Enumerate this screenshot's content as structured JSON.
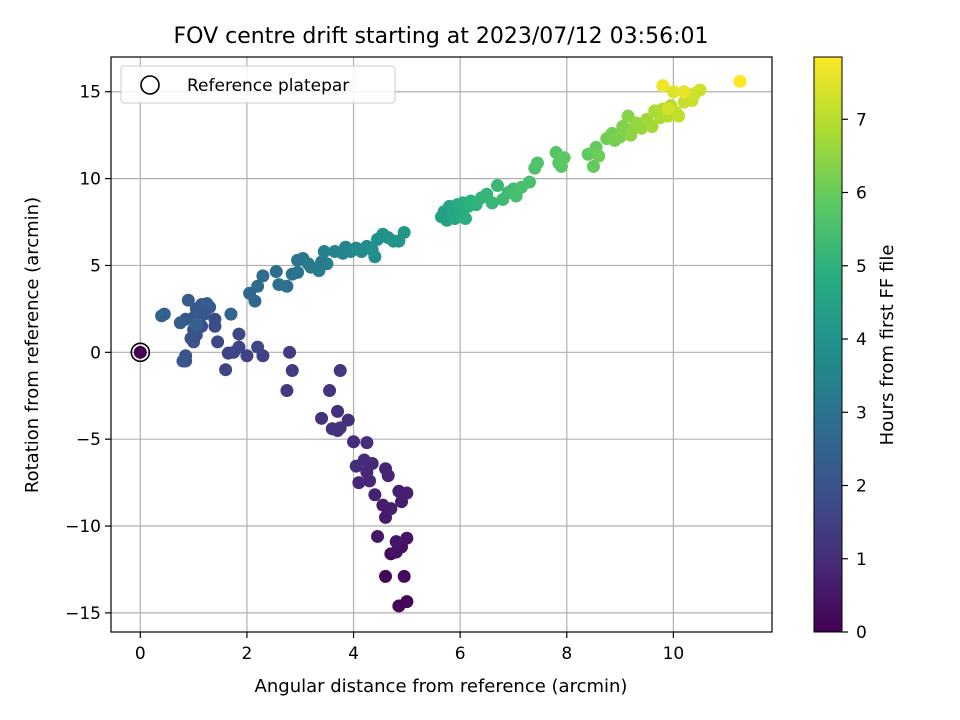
{
  "chart_data": {
    "type": "scatter",
    "title": "FOV centre drift starting at 2023/07/12 03:56:01",
    "xlabel": "Angular distance from reference (arcmin)",
    "ylabel": "Rotation from reference (arcmin)",
    "xlim": [
      -0.55,
      11.85
    ],
    "ylim": [
      -16.1,
      17.0
    ],
    "xticks": [
      0,
      2,
      4,
      6,
      8,
      10
    ],
    "yticks": [
      -15,
      -10,
      -5,
      0,
      5,
      10,
      15
    ],
    "grid": true,
    "legend": {
      "placement": "upper-left",
      "entries": [
        "Reference platepar"
      ]
    },
    "reference_point": {
      "x": 0,
      "y": 0
    },
    "colorbar": {
      "label": "Hours from first FF file",
      "range": [
        0,
        7.85
      ],
      "ticks": [
        0,
        1,
        2,
        3,
        4,
        5,
        6,
        7
      ],
      "colormap": "viridis"
    },
    "series": [
      {
        "points": [
          {
            "x": 4.85,
            "y": -14.6,
            "t": 0.05
          },
          {
            "x": 5.0,
            "y": -14.35,
            "t": 0.1
          },
          {
            "x": 4.6,
            "y": -12.9,
            "t": 0.15
          },
          {
            "x": 4.95,
            "y": -12.9,
            "t": 0.2
          },
          {
            "x": 4.7,
            "y": -11.6,
            "t": 0.25
          },
          {
            "x": 4.9,
            "y": -11.2,
            "t": 0.3
          },
          {
            "x": 4.8,
            "y": -11.5,
            "t": 0.35
          },
          {
            "x": 5.0,
            "y": -10.7,
            "t": 0.4
          },
          {
            "x": 4.8,
            "y": -10.9,
            "t": 0.45
          },
          {
            "x": 4.45,
            "y": -10.6,
            "t": 0.5
          },
          {
            "x": 4.6,
            "y": -9.5,
            "t": 0.55
          },
          {
            "x": 4.7,
            "y": -9.0,
            "t": 0.6
          },
          {
            "x": 4.55,
            "y": -8.8,
            "t": 0.6
          },
          {
            "x": 4.9,
            "y": -8.6,
            "t": 0.65
          },
          {
            "x": 4.85,
            "y": -8.0,
            "t": 0.7
          },
          {
            "x": 5.0,
            "y": -8.1,
            "t": 0.7
          },
          {
            "x": 4.4,
            "y": -8.2,
            "t": 0.75
          },
          {
            "x": 4.65,
            "y": -7.1,
            "t": 0.8
          },
          {
            "x": 4.6,
            "y": -6.7,
            "t": 0.8
          },
          {
            "x": 4.3,
            "y": -7.4,
            "t": 0.85
          },
          {
            "x": 4.1,
            "y": -7.5,
            "t": 0.85
          },
          {
            "x": 4.25,
            "y": -6.9,
            "t": 0.9
          },
          {
            "x": 4.35,
            "y": -6.4,
            "t": 0.9
          },
          {
            "x": 4.05,
            "y": -6.55,
            "t": 0.95
          },
          {
            "x": 4.2,
            "y": -6.2,
            "t": 0.95
          },
          {
            "x": 4.25,
            "y": -5.2,
            "t": 1.0
          },
          {
            "x": 4.0,
            "y": -5.15,
            "t": 1.0
          },
          {
            "x": 3.9,
            "y": -3.9,
            "t": 1.05
          },
          {
            "x": 3.7,
            "y": -3.4,
            "t": 1.05
          },
          {
            "x": 3.4,
            "y": -3.8,
            "t": 1.1
          },
          {
            "x": 3.6,
            "y": -4.4,
            "t": 1.1
          },
          {
            "x": 3.75,
            "y": -4.35,
            "t": 1.15
          },
          {
            "x": 3.7,
            "y": -4.5,
            "t": 1.15
          },
          {
            "x": 3.55,
            "y": -2.2,
            "t": 1.2
          },
          {
            "x": 3.75,
            "y": -1.05,
            "t": 1.25
          },
          {
            "x": 2.75,
            "y": -2.2,
            "t": 1.3
          },
          {
            "x": 2.85,
            "y": -1.05,
            "t": 1.35
          },
          {
            "x": 2.8,
            "y": 0.0,
            "t": 1.4
          },
          {
            "x": 2.3,
            "y": -0.2,
            "t": 1.5
          },
          {
            "x": 2.0,
            "y": -0.2,
            "t": 1.55
          },
          {
            "x": 1.65,
            "y": -0.05,
            "t": 1.6
          },
          {
            "x": 1.6,
            "y": -1.0,
            "t": 1.6
          },
          {
            "x": 1.75,
            "y": 0.0,
            "t": 1.65
          },
          {
            "x": 1.85,
            "y": 0.3,
            "t": 1.65
          },
          {
            "x": 2.2,
            "y": 0.3,
            "t": 1.7
          },
          {
            "x": 1.85,
            "y": 1.05,
            "t": 1.7
          },
          {
            "x": 1.45,
            "y": 0.6,
            "t": 1.75
          },
          {
            "x": 1.4,
            "y": 1.5,
            "t": 1.8
          },
          {
            "x": 1.4,
            "y": 1.9,
            "t": 1.8
          },
          {
            "x": 1.15,
            "y": 1.5,
            "t": 1.85
          },
          {
            "x": 1.0,
            "y": 1.3,
            "t": 1.9
          },
          {
            "x": 0.95,
            "y": 0.8,
            "t": 1.9
          },
          {
            "x": 1.0,
            "y": 0.6,
            "t": 1.95
          },
          {
            "x": 1.05,
            "y": 1.0,
            "t": 1.95
          },
          {
            "x": 0.85,
            "y": -0.2,
            "t": 2.0
          },
          {
            "x": 0.85,
            "y": -0.5,
            "t": 2.0
          },
          {
            "x": 0.8,
            "y": -0.5,
            "t": 2.05
          },
          {
            "x": 0.85,
            "y": 1.9,
            "t": 2.1
          },
          {
            "x": 1.0,
            "y": 2.0,
            "t": 2.1
          },
          {
            "x": 1.2,
            "y": 2.2,
            "t": 2.15
          },
          {
            "x": 1.3,
            "y": 2.6,
            "t": 2.15
          },
          {
            "x": 1.05,
            "y": 2.5,
            "t": 2.2
          },
          {
            "x": 1.15,
            "y": 2.75,
            "t": 2.2
          },
          {
            "x": 0.9,
            "y": 3.0,
            "t": 2.25
          },
          {
            "x": 1.25,
            "y": 2.8,
            "t": 2.25
          },
          {
            "x": 0.75,
            "y": 1.7,
            "t": 2.3
          },
          {
            "x": 0.45,
            "y": 2.2,
            "t": 2.35
          },
          {
            "x": 0.4,
            "y": 2.1,
            "t": 2.4
          },
          {
            "x": 1.05,
            "y": 1.6,
            "t": 2.45
          },
          {
            "x": 1.7,
            "y": 2.2,
            "t": 2.5
          },
          {
            "x": 2.05,
            "y": 3.4,
            "t": 2.6
          },
          {
            "x": 2.15,
            "y": 2.95,
            "t": 2.65
          },
          {
            "x": 2.2,
            "y": 3.8,
            "t": 2.7
          },
          {
            "x": 2.3,
            "y": 4.4,
            "t": 2.75
          },
          {
            "x": 2.55,
            "y": 4.65,
            "t": 2.8
          },
          {
            "x": 2.6,
            "y": 3.9,
            "t": 2.85
          },
          {
            "x": 2.75,
            "y": 3.8,
            "t": 2.9
          },
          {
            "x": 2.85,
            "y": 4.5,
            "t": 2.95
          },
          {
            "x": 2.95,
            "y": 4.6,
            "t": 3.0
          },
          {
            "x": 2.95,
            "y": 5.3,
            "t": 3.05
          },
          {
            "x": 3.05,
            "y": 5.4,
            "t": 3.1
          },
          {
            "x": 3.15,
            "y": 5.1,
            "t": 3.15
          },
          {
            "x": 3.2,
            "y": 4.9,
            "t": 3.2
          },
          {
            "x": 3.35,
            "y": 4.7,
            "t": 3.25
          },
          {
            "x": 3.4,
            "y": 5.2,
            "t": 3.3
          },
          {
            "x": 3.5,
            "y": 5.1,
            "t": 3.35
          },
          {
            "x": 3.45,
            "y": 5.8,
            "t": 3.4
          },
          {
            "x": 3.65,
            "y": 5.8,
            "t": 3.45
          },
          {
            "x": 3.8,
            "y": 5.7,
            "t": 3.5
          },
          {
            "x": 3.85,
            "y": 6.05,
            "t": 3.55
          },
          {
            "x": 3.95,
            "y": 5.8,
            "t": 3.6
          },
          {
            "x": 4.05,
            "y": 6.0,
            "t": 3.65
          },
          {
            "x": 4.15,
            "y": 5.8,
            "t": 3.7
          },
          {
            "x": 4.25,
            "y": 6.1,
            "t": 3.75
          },
          {
            "x": 4.35,
            "y": 5.9,
            "t": 3.8
          },
          {
            "x": 4.4,
            "y": 5.5,
            "t": 3.85
          },
          {
            "x": 4.45,
            "y": 6.5,
            "t": 3.9
          },
          {
            "x": 4.55,
            "y": 6.8,
            "t": 3.95
          },
          {
            "x": 4.65,
            "y": 6.6,
            "t": 4.0
          },
          {
            "x": 4.75,
            "y": 6.4,
            "t": 4.05
          },
          {
            "x": 4.85,
            "y": 6.4,
            "t": 4.1
          },
          {
            "x": 4.95,
            "y": 6.9,
            "t": 4.15
          },
          {
            "x": 5.65,
            "y": 7.8,
            "t": 4.4
          },
          {
            "x": 5.7,
            "y": 8.1,
            "t": 4.45
          },
          {
            "x": 5.75,
            "y": 7.6,
            "t": 4.5
          },
          {
            "x": 5.8,
            "y": 8.4,
            "t": 4.55
          },
          {
            "x": 5.85,
            "y": 8.0,
            "t": 4.6
          },
          {
            "x": 5.9,
            "y": 7.7,
            "t": 4.65
          },
          {
            "x": 5.95,
            "y": 8.5,
            "t": 4.7
          },
          {
            "x": 6.0,
            "y": 8.2,
            "t": 4.75
          },
          {
            "x": 6.05,
            "y": 7.8,
            "t": 4.8
          },
          {
            "x": 6.05,
            "y": 8.6,
            "t": 4.85
          },
          {
            "x": 6.1,
            "y": 7.7,
            "t": 4.9
          },
          {
            "x": 6.15,
            "y": 8.4,
            "t": 4.95
          },
          {
            "x": 6.2,
            "y": 8.7,
            "t": 5.0
          },
          {
            "x": 6.3,
            "y": 8.5,
            "t": 5.05
          },
          {
            "x": 6.4,
            "y": 8.9,
            "t": 5.1
          },
          {
            "x": 6.5,
            "y": 9.1,
            "t": 5.15
          },
          {
            "x": 6.6,
            "y": 8.6,
            "t": 5.2
          },
          {
            "x": 6.7,
            "y": 9.6,
            "t": 5.25
          },
          {
            "x": 6.8,
            "y": 8.8,
            "t": 5.3
          },
          {
            "x": 6.9,
            "y": 9.2,
            "t": 5.35
          },
          {
            "x": 7.0,
            "y": 9.4,
            "t": 5.4
          },
          {
            "x": 7.05,
            "y": 9.0,
            "t": 5.45
          },
          {
            "x": 7.15,
            "y": 9.5,
            "t": 5.5
          },
          {
            "x": 7.3,
            "y": 9.8,
            "t": 5.55
          },
          {
            "x": 7.4,
            "y": 10.6,
            "t": 5.6
          },
          {
            "x": 7.45,
            "y": 10.9,
            "t": 5.65
          },
          {
            "x": 7.85,
            "y": 10.9,
            "t": 5.7
          },
          {
            "x": 7.8,
            "y": 11.5,
            "t": 5.75
          },
          {
            "x": 7.9,
            "y": 10.7,
            "t": 5.8
          },
          {
            "x": 7.95,
            "y": 11.2,
            "t": 5.85
          },
          {
            "x": 8.4,
            "y": 11.4,
            "t": 5.9
          },
          {
            "x": 8.5,
            "y": 10.7,
            "t": 5.95
          },
          {
            "x": 8.55,
            "y": 11.8,
            "t": 6.0
          },
          {
            "x": 8.6,
            "y": 11.3,
            "t": 6.05
          },
          {
            "x": 8.75,
            "y": 12.3,
            "t": 6.1
          },
          {
            "x": 8.85,
            "y": 12.6,
            "t": 6.15
          },
          {
            "x": 8.9,
            "y": 12.2,
            "t": 6.2
          },
          {
            "x": 9.0,
            "y": 12.4,
            "t": 6.25
          },
          {
            "x": 9.05,
            "y": 13.0,
            "t": 6.3
          },
          {
            "x": 9.1,
            "y": 12.7,
            "t": 6.35
          },
          {
            "x": 9.15,
            "y": 13.6,
            "t": 6.4
          },
          {
            "x": 9.2,
            "y": 12.5,
            "t": 6.45
          },
          {
            "x": 9.25,
            "y": 12.9,
            "t": 6.5
          },
          {
            "x": 9.3,
            "y": 13.2,
            "t": 6.55
          },
          {
            "x": 9.4,
            "y": 12.9,
            "t": 6.6
          },
          {
            "x": 9.5,
            "y": 13.4,
            "t": 6.7
          },
          {
            "x": 9.6,
            "y": 13.0,
            "t": 6.75
          },
          {
            "x": 9.65,
            "y": 13.9,
            "t": 6.8
          },
          {
            "x": 9.75,
            "y": 13.5,
            "t": 6.85
          },
          {
            "x": 9.8,
            "y": 14.0,
            "t": 6.9
          },
          {
            "x": 9.9,
            "y": 13.6,
            "t": 6.95
          },
          {
            "x": 9.95,
            "y": 14.2,
            "t": 7.0
          },
          {
            "x": 10.05,
            "y": 13.8,
            "t": 7.05
          },
          {
            "x": 10.1,
            "y": 13.6,
            "t": 7.1
          },
          {
            "x": 10.2,
            "y": 14.4,
            "t": 7.15
          },
          {
            "x": 10.35,
            "y": 14.5,
            "t": 7.2
          },
          {
            "x": 10.4,
            "y": 14.9,
            "t": 7.25
          },
          {
            "x": 10.5,
            "y": 15.1,
            "t": 7.3
          },
          {
            "x": 9.9,
            "y": 14.0,
            "t": 7.35
          },
          {
            "x": 10.0,
            "y": 15.0,
            "t": 7.45
          },
          {
            "x": 10.2,
            "y": 15.0,
            "t": 7.55
          },
          {
            "x": 9.8,
            "y": 15.35,
            "t": 7.7
          },
          {
            "x": 11.25,
            "y": 15.6,
            "t": 7.85
          }
        ]
      }
    ]
  }
}
